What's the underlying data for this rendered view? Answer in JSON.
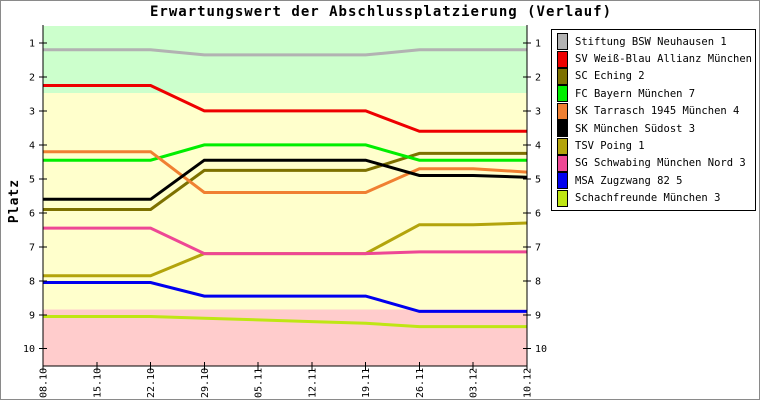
{
  "chart_data": {
    "type": "line",
    "title": "Erwartungswert der Abschlussplatzierung (Verlauf)",
    "xlabel": "",
    "ylabel": "Platz",
    "y_axis_inverted": true,
    "ylim": [
      0.5,
      10.5
    ],
    "y_ticks": [
      1,
      2,
      3,
      4,
      5,
      6,
      7,
      8,
      9,
      10
    ],
    "grid": false,
    "legend_position": "top-right",
    "categories": [
      "08.10",
      "15.10",
      "22.10",
      "29.10",
      "05.11",
      "12.11",
      "19.11",
      "26.11",
      "03.12",
      "10.12"
    ],
    "series": [
      {
        "name": "Stiftung BSW Neuhausen 1",
        "color": "#b2b2b2",
        "values": [
          1.2,
          1.2,
          1.2,
          1.35,
          1.35,
          1.35,
          1.35,
          1.2,
          1.2,
          1.2
        ]
      },
      {
        "name": "SV Weiß-Blau Allianz München 1",
        "color": "#ee0000",
        "values": [
          2.25,
          2.25,
          2.25,
          3.0,
          3.0,
          3.0,
          3.0,
          3.6,
          3.6,
          3.6
        ]
      },
      {
        "name": "SC Eching 2",
        "color": "#7d7100",
        "values": [
          5.9,
          5.9,
          5.9,
          4.75,
          4.75,
          4.75,
          4.75,
          4.25,
          4.25,
          4.25
        ]
      },
      {
        "name": "FC Bayern München 7",
        "color": "#00ee00",
        "values": [
          4.45,
          4.45,
          4.45,
          4.0,
          4.0,
          4.0,
          4.0,
          4.45,
          4.45,
          4.45
        ]
      },
      {
        "name": "SK Tarrasch 1945 München 4",
        "color": "#f08032",
        "values": [
          4.2,
          4.2,
          4.2,
          5.4,
          5.4,
          5.4,
          5.4,
          4.7,
          4.7,
          4.8
        ]
      },
      {
        "name": "SK München Südost 3",
        "color": "#000000",
        "values": [
          5.6,
          5.6,
          5.6,
          4.45,
          4.45,
          4.45,
          4.45,
          4.9,
          4.9,
          4.95
        ]
      },
      {
        "name": "TSV Poing 1",
        "color": "#b3a40c",
        "values": [
          7.85,
          7.85,
          7.85,
          7.2,
          7.2,
          7.2,
          7.2,
          6.35,
          6.35,
          6.3
        ]
      },
      {
        "name": "SG Schwabing München Nord 3",
        "color": "#ee4895",
        "values": [
          6.45,
          6.45,
          6.45,
          7.2,
          7.2,
          7.2,
          7.2,
          7.15,
          7.15,
          7.15
        ]
      },
      {
        "name": "MSA Zugzwang 82 5",
        "color": "#0000ee",
        "values": [
          8.05,
          8.05,
          8.05,
          8.45,
          8.45,
          8.45,
          8.45,
          8.9,
          8.9,
          8.9
        ]
      },
      {
        "name": "Schachfreunde München 3",
        "color": "#bfe613",
        "values": [
          9.05,
          9.05,
          9.05,
          9.1,
          9.15,
          9.2,
          9.25,
          9.35,
          9.35,
          9.35
        ]
      }
    ],
    "bands": [
      {
        "name": "top-zone",
        "color": "#ccffcc",
        "from": 0.5,
        "to": 2.47
      },
      {
        "name": "middle-zone",
        "color": "#ffffcc",
        "from": 2.47,
        "to": 8.85
      },
      {
        "name": "bottom-zone",
        "color": "#ffcccc",
        "from": 8.85,
        "to": 10.5
      }
    ]
  }
}
